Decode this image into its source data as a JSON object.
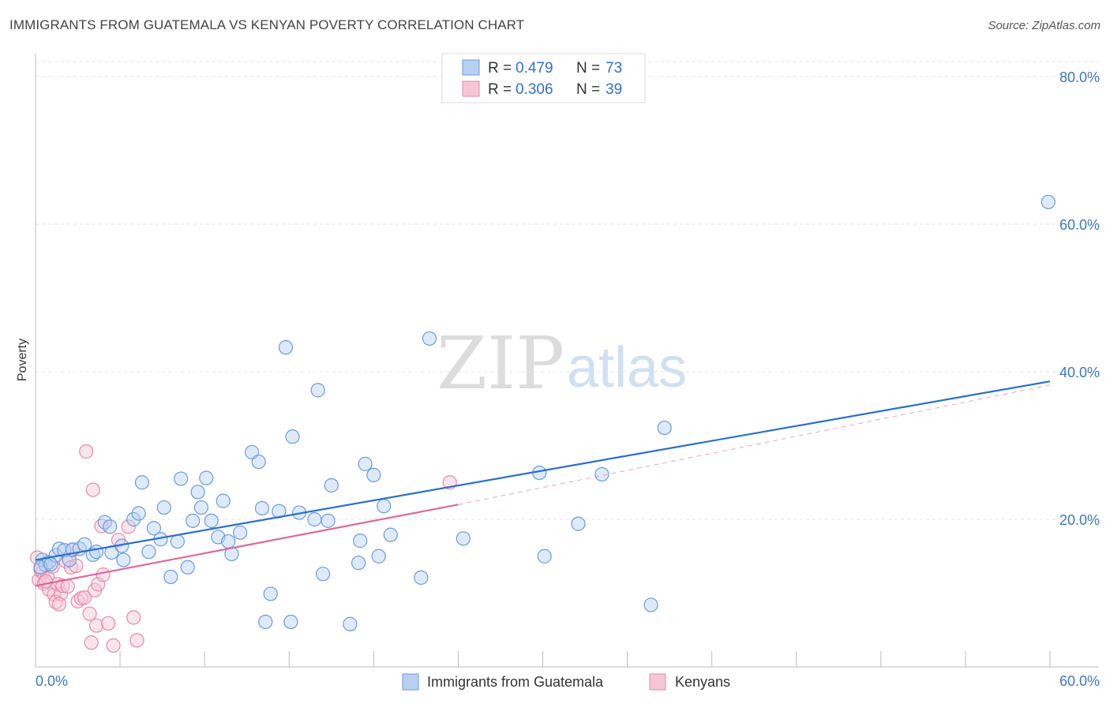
{
  "header": {
    "title": "IMMIGRANTS FROM GUATEMALA VS KENYAN POVERTY CORRELATION CHART",
    "source": "Source: ZipAtlas.com"
  },
  "watermark": {
    "zip": "ZIP",
    "atlas": "atlas"
  },
  "legend": {
    "r_label": "R =",
    "n_label": "N =",
    "items": [
      {
        "name": "Immigrants from Guatemala",
        "r": "0.479",
        "n": "73",
        "fill": "#b8d0f2",
        "stroke": "#6a9bdc"
      },
      {
        "name": "Kenyans",
        "r": "0.306",
        "n": "39",
        "fill": "#f7c6d6",
        "stroke": "#e58aa8"
      }
    ]
  },
  "chart_data": {
    "type": "scatter",
    "title": "IMMIGRANTS FROM GUATEMALA VS KENYAN POVERTY CORRELATION CHART",
    "xlabel": "",
    "ylabel": "Poverty",
    "xlim": [
      0,
      60
    ],
    "ylim": [
      0,
      80
    ],
    "x_tick_labels": [
      "0.0%",
      "60.0%"
    ],
    "y_ticks": [
      20,
      40,
      60,
      80
    ],
    "y_tick_labels": [
      "20.0%",
      "40.0%",
      "60.0%",
      "80.0%"
    ],
    "grid": true,
    "legend_position": "top-center",
    "series": [
      {
        "name": "Immigrants from Guatemala",
        "color": "#6a9bdc",
        "fill": "#b8d0f2",
        "trend": {
          "x": [
            0,
            60
          ],
          "y": [
            14.5,
            38.7
          ],
          "color": "#2a6fcf"
        },
        "points": [
          [
            0.4,
            14.5
          ],
          [
            0.6,
            13.8
          ],
          [
            0.8,
            14.2
          ],
          [
            1.2,
            15.1
          ],
          [
            1.4,
            16.0
          ],
          [
            1.7,
            15.8
          ],
          [
            2.0,
            14.5
          ],
          [
            2.2,
            15.9
          ],
          [
            2.6,
            16.0
          ],
          [
            2.9,
            16.6
          ],
          [
            3.4,
            15.2
          ],
          [
            3.6,
            15.6
          ],
          [
            4.1,
            19.6
          ],
          [
            4.4,
            19.0
          ],
          [
            4.5,
            15.5
          ],
          [
            5.1,
            16.4
          ],
          [
            5.2,
            14.5
          ],
          [
            5.8,
            20.0
          ],
          [
            6.1,
            20.8
          ],
          [
            6.3,
            25.0
          ],
          [
            6.7,
            15.6
          ],
          [
            7.0,
            18.8
          ],
          [
            7.4,
            17.3
          ],
          [
            7.6,
            21.6
          ],
          [
            8.0,
            12.2
          ],
          [
            8.4,
            17.0
          ],
          [
            8.6,
            25.5
          ],
          [
            9.0,
            13.5
          ],
          [
            9.3,
            19.8
          ],
          [
            9.6,
            23.7
          ],
          [
            9.8,
            21.6
          ],
          [
            10.1,
            25.6
          ],
          [
            10.4,
            19.8
          ],
          [
            10.8,
            17.6
          ],
          [
            11.1,
            22.5
          ],
          [
            11.4,
            17.0
          ],
          [
            11.6,
            15.3
          ],
          [
            12.1,
            18.2
          ],
          [
            12.8,
            29.1
          ],
          [
            13.2,
            27.8
          ],
          [
            13.4,
            21.5
          ],
          [
            13.6,
            6.1
          ],
          [
            13.9,
            9.9
          ],
          [
            14.4,
            21.1
          ],
          [
            14.8,
            43.3
          ],
          [
            15.1,
            6.1
          ],
          [
            15.2,
            31.2
          ],
          [
            15.6,
            20.9
          ],
          [
            16.5,
            20.0
          ],
          [
            16.7,
            37.5
          ],
          [
            17.0,
            12.6
          ],
          [
            17.3,
            19.8
          ],
          [
            17.5,
            24.6
          ],
          [
            18.6,
            5.8
          ],
          [
            19.1,
            14.1
          ],
          [
            19.2,
            17.1
          ],
          [
            19.5,
            27.5
          ],
          [
            20.0,
            26.0
          ],
          [
            20.3,
            15.0
          ],
          [
            20.6,
            21.8
          ],
          [
            21.0,
            17.9
          ],
          [
            22.8,
            12.1
          ],
          [
            23.3,
            44.5
          ],
          [
            25.3,
            17.4
          ],
          [
            29.8,
            26.3
          ],
          [
            30.1,
            15.0
          ],
          [
            32.1,
            19.4
          ],
          [
            33.5,
            26.1
          ],
          [
            36.4,
            8.4
          ],
          [
            37.2,
            32.4
          ],
          [
            59.9,
            63.0
          ],
          [
            0.3,
            13.5
          ],
          [
            0.9,
            13.9
          ]
        ]
      },
      {
        "name": "Kenyans",
        "color": "#e58aa8",
        "fill": "#f7c6d6",
        "trend": {
          "x": [
            0,
            25
          ],
          "y": [
            11.0,
            22.0
          ],
          "color": "#e0679a"
        },
        "trend_dashed": {
          "x": [
            25,
            60
          ],
          "y": [
            22.0,
            38.2
          ]
        },
        "points": [
          [
            0.1,
            14.8
          ],
          [
            0.2,
            11.8
          ],
          [
            0.4,
            12.8
          ],
          [
            0.5,
            11.3
          ],
          [
            0.7,
            12.2
          ],
          [
            0.8,
            10.5
          ],
          [
            1.0,
            13.6
          ],
          [
            1.1,
            9.8
          ],
          [
            1.2,
            8.8
          ],
          [
            1.3,
            11.2
          ],
          [
            1.5,
            9.9
          ],
          [
            1.6,
            11.0
          ],
          [
            1.8,
            14.3
          ],
          [
            1.9,
            10.9
          ],
          [
            2.1,
            13.5
          ],
          [
            2.2,
            15.8
          ],
          [
            2.4,
            13.7
          ],
          [
            2.5,
            8.9
          ],
          [
            2.7,
            9.3
          ],
          [
            2.9,
            9.4
          ],
          [
            3.0,
            29.2
          ],
          [
            3.2,
            7.2
          ],
          [
            3.3,
            3.3
          ],
          [
            3.4,
            24.0
          ],
          [
            3.5,
            10.4
          ],
          [
            3.6,
            5.6
          ],
          [
            3.7,
            11.2
          ],
          [
            3.9,
            19.1
          ],
          [
            4.0,
            12.5
          ],
          [
            4.3,
            5.9
          ],
          [
            4.6,
            2.9
          ],
          [
            4.9,
            17.2
          ],
          [
            5.5,
            19.0
          ],
          [
            5.8,
            6.7
          ],
          [
            6.0,
            3.6
          ],
          [
            0.3,
            13.2
          ],
          [
            0.6,
            11.6
          ],
          [
            1.4,
            8.5
          ],
          [
            24.5,
            25.0
          ]
        ]
      }
    ]
  }
}
